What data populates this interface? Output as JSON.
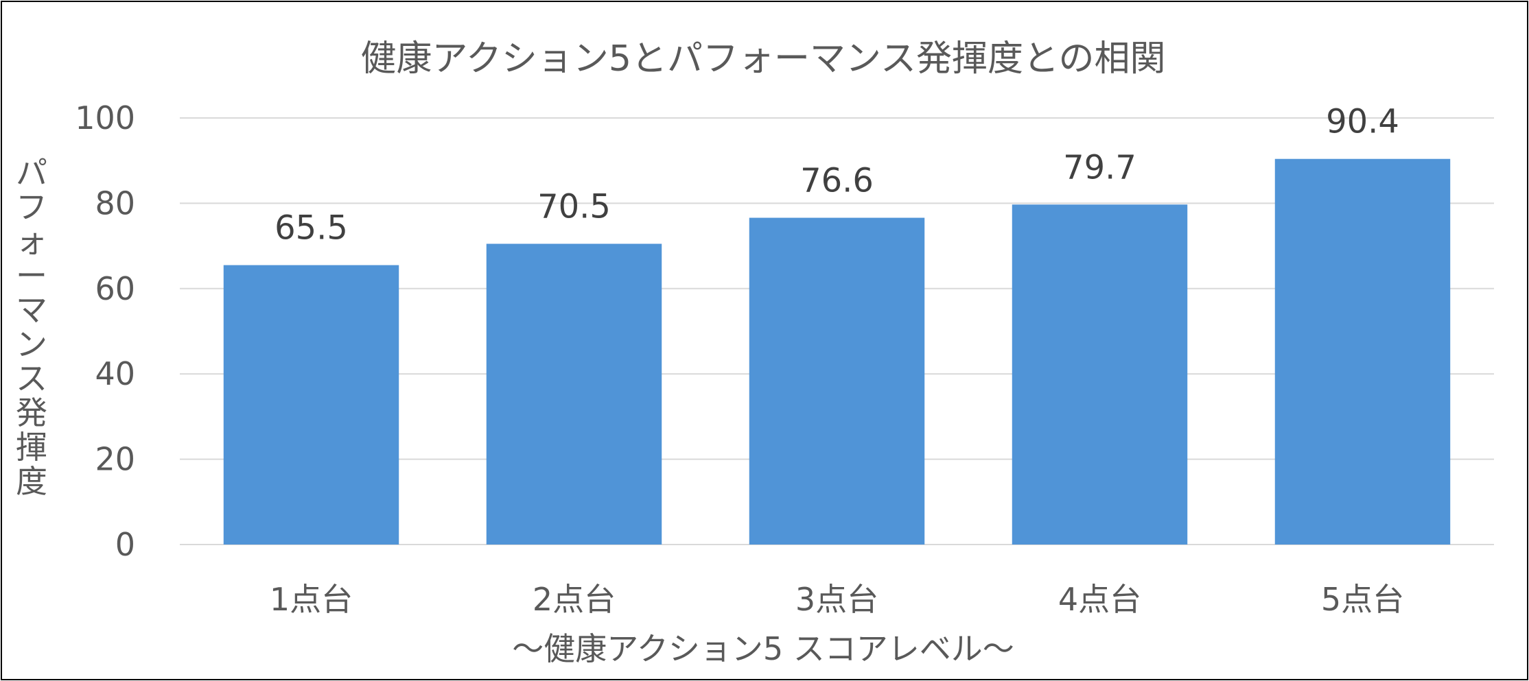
{
  "chart_data": {
    "type": "bar",
    "title": "健康アクション5とパフォーマンス発揮度との相関",
    "xlabel": "～健康アクション5 スコアレベル～",
    "ylabel": "パフォーマンス発揮度",
    "categories": [
      "1点台",
      "2点台",
      "3点台",
      "4点台",
      "5点台"
    ],
    "values": [
      65.5,
      70.5,
      76.6,
      79.7,
      90.4
    ],
    "value_labels": [
      "65.5",
      "70.5",
      "76.6",
      "79.7",
      "90.4"
    ],
    "ylim": [
      0,
      100
    ],
    "yticks": [
      0,
      20,
      40,
      60,
      80,
      100
    ],
    "ytick_labels": [
      "0",
      "20",
      "40",
      "60",
      "80",
      "100"
    ],
    "grid": true,
    "legend": "none",
    "bar_color": "#5094D7",
    "grid_color": "#D9D9D9"
  }
}
